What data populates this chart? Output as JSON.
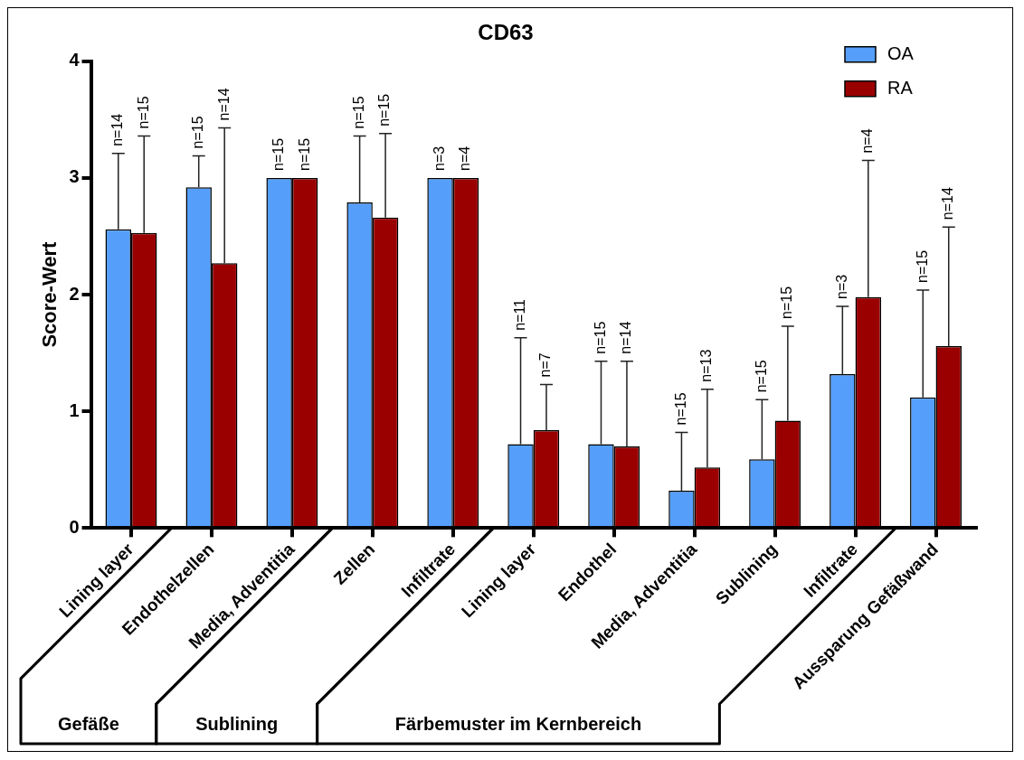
{
  "chart_data": {
    "type": "bar",
    "title": "CD63",
    "ylabel": "Score-Wert",
    "categories": [
      "Lining layer",
      "Endothelzellen",
      "Media, Adventitia",
      "Zellen",
      "Infiltrate",
      "Lining layer",
      "Endothel",
      "Media, Adventitia",
      "Sublining",
      "Infiltrate",
      "Aussparung Gefäßwand"
    ],
    "series": [
      {
        "name": "OA",
        "color": "#559ffb",
        "values": [
          2.56,
          2.92,
          3,
          2.79,
          3,
          0.72,
          0.72,
          0.32,
          0.59,
          1.32,
          1.12
        ],
        "errors": [
          [
            2.56,
            3.21
          ],
          [
            2.92,
            3.19
          ],
          null,
          [
            2.79,
            3.36
          ],
          null,
          [
            0.72,
            1.63
          ],
          [
            0.72,
            1.43
          ],
          [
            0.32,
            0.82
          ],
          [
            0.59,
            1.1
          ],
          [
            1.32,
            1.9
          ],
          [
            1.12,
            2.04
          ]
        ]
      },
      {
        "name": "RA",
        "color": "#9b0000",
        "values": [
          2.53,
          2.27,
          3,
          2.66,
          3,
          0.84,
          0.7,
          0.52,
          0.92,
          1.98,
          1.56
        ],
        "errors": [
          [
            2.53,
            3.36
          ],
          [
            2.27,
            3.43
          ],
          null,
          [
            2.66,
            3.38
          ],
          null,
          [
            0.84,
            1.23
          ],
          [
            0.7,
            1.43
          ],
          [
            0.52,
            1.19
          ],
          [
            0.92,
            1.73
          ],
          [
            1.98,
            3.15
          ],
          [
            1.56,
            2.58
          ]
        ]
      }
    ],
    "ylim": [
      0,
      4
    ],
    "yticks": [
      0,
      1,
      2,
      3,
      4
    ],
    "grid": false,
    "legend": "top right",
    "annotations": [
      "Gefäße",
      "Sublining",
      "Färbemuster im Kernbereich",
      "n=14",
      "n=15",
      "n=15",
      "n=14",
      "n=15",
      "n=15",
      "n=15",
      "n=15",
      "n=3",
      "n=4",
      "n=11",
      "n=7",
      "n=15",
      "n=14",
      "n=15",
      "n=13",
      "n=15",
      "n=15",
      "n=3",
      "n=4",
      "n=15",
      "n=14"
    ]
  }
}
